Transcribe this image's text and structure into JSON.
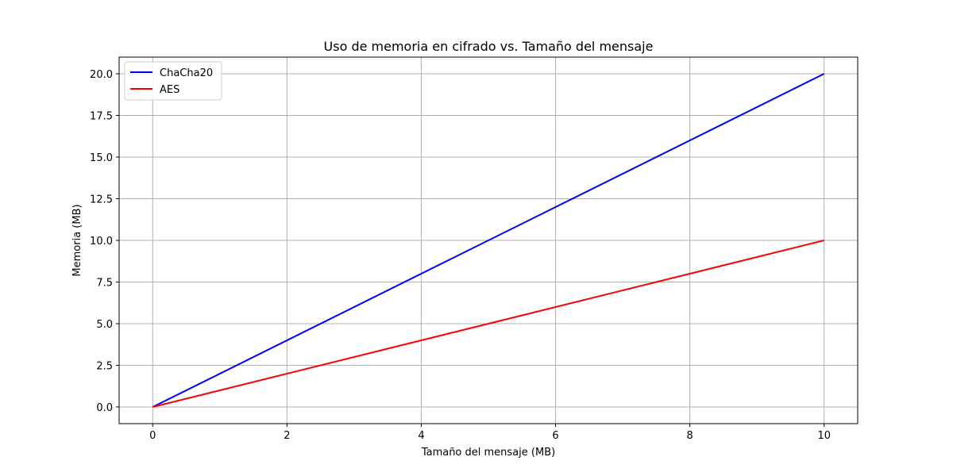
{
  "chart_data": {
    "type": "line",
    "title": "Uso de memoria en cifrado vs. Tamaño del mensaje",
    "xlabel": "Tamaño del mensaje (MB)",
    "ylabel": "Memoria (MB)",
    "xlim": [
      -0.5,
      10.5
    ],
    "ylim": [
      -1.0,
      21.0
    ],
    "x_ticks": [
      0,
      2,
      4,
      6,
      8,
      10
    ],
    "y_ticks": [
      0.0,
      2.5,
      5.0,
      7.5,
      10.0,
      12.5,
      15.0,
      17.5,
      20.0
    ],
    "x_tick_labels": [
      "0",
      "2",
      "4",
      "6",
      "8",
      "10"
    ],
    "y_tick_labels": [
      "0.0",
      "2.5",
      "5.0",
      "7.5",
      "10.0",
      "12.5",
      "15.0",
      "17.5",
      "20.0"
    ],
    "grid": true,
    "legend_position": "top-left",
    "series": [
      {
        "name": "ChaCha20",
        "color": "#0000ff",
        "x": [
          0,
          10
        ],
        "y": [
          0.0,
          20.0
        ]
      },
      {
        "name": "AES",
        "color": "#ff0000",
        "x": [
          0,
          10
        ],
        "y": [
          0.0,
          10.0
        ]
      }
    ]
  }
}
